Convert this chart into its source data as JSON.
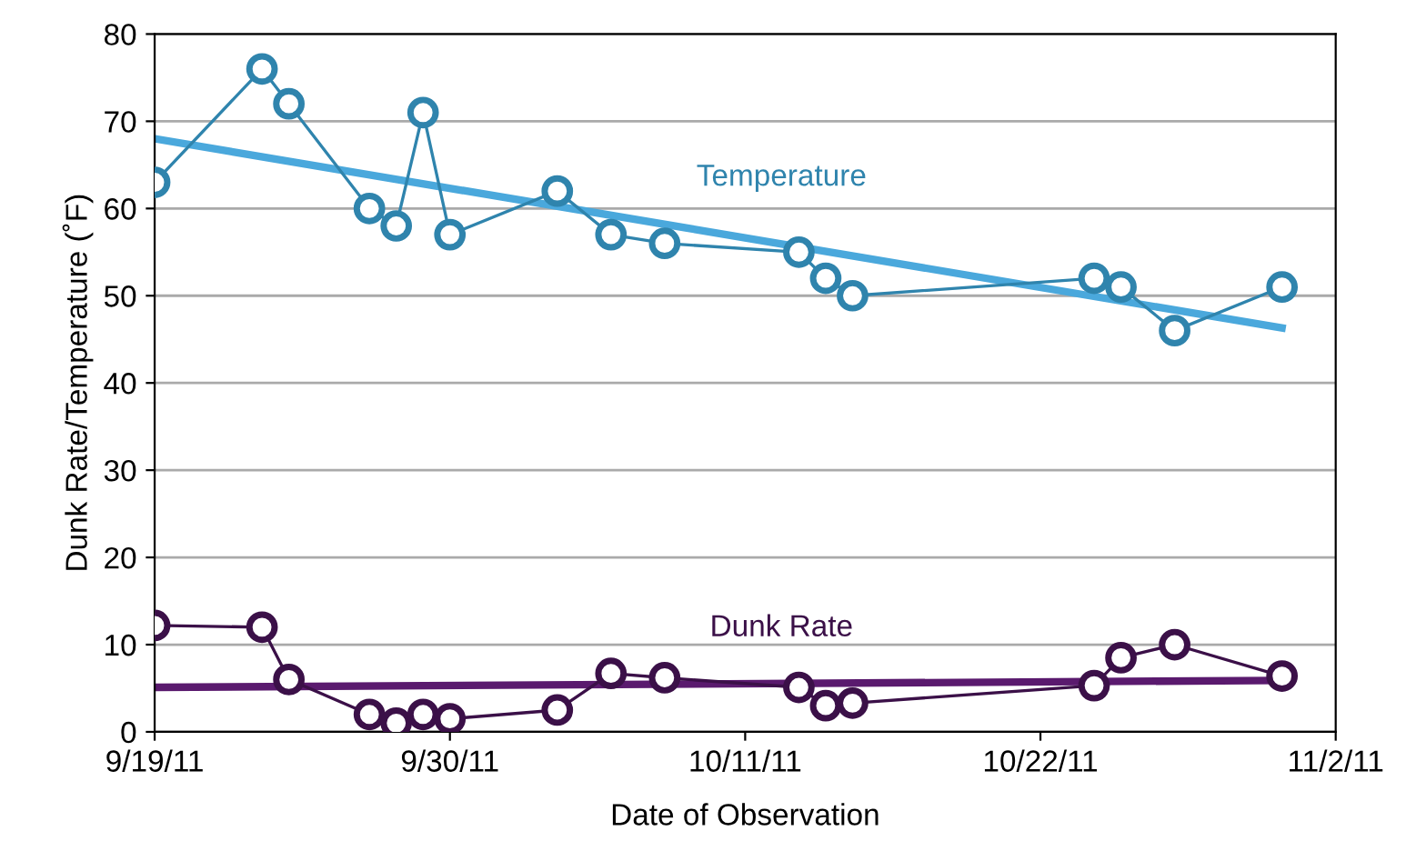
{
  "chart_data": {
    "type": "line",
    "xlabel": "Date of Observation",
    "ylabel": "Dunk Rate/Temperature (˚F)",
    "xlim": [
      "2011-09-19",
      "2011-11-02"
    ],
    "xticks": [
      {
        "value": "2011-09-19",
        "label": "9/19/11"
      },
      {
        "value": "2011-09-30",
        "label": "9/30/11"
      },
      {
        "value": "2011-10-11",
        "label": "10/11/11"
      },
      {
        "value": "2011-10-22",
        "label": "10/22/11"
      },
      {
        "value": "2011-11-02",
        "label": "11/2/11"
      }
    ],
    "ylim": [
      0,
      80
    ],
    "yticks": [
      0,
      10,
      20,
      30,
      40,
      50,
      60,
      70,
      80
    ],
    "grid": "y",
    "marker": "circle",
    "line_style": "solid",
    "series": [
      {
        "name": "Temperature",
        "color": "#2f84ad",
        "x": [
          "2011-09-19",
          "2011-09-23",
          "2011-09-24",
          "2011-09-27",
          "2011-09-28",
          "2011-09-29",
          "2011-09-30",
          "2011-10-04",
          "2011-10-06",
          "2011-10-08",
          "2011-10-13",
          "2011-10-14",
          "2011-10-15",
          "2011-10-24",
          "2011-10-25",
          "2011-10-27",
          "2011-10-31"
        ],
        "values": [
          63,
          76,
          72,
          60,
          58,
          71,
          57,
          62,
          57,
          56,
          55,
          52,
          50,
          52,
          51,
          46,
          51
        ]
      },
      {
        "type": "line",
        "marker": "none",
        "color": "#4aa8dc",
        "x": [
          "2011-09-19",
          "2011-10-31"
        ],
        "values": [
          68,
          46.3
        ]
      },
      {
        "name": "Dunk Rate",
        "color": "#3b1048",
        "x": [
          "2011-09-19",
          "2011-09-23",
          "2011-09-24",
          "2011-09-27",
          "2011-09-28",
          "2011-09-29",
          "2011-09-30",
          "2011-10-04",
          "2011-10-06",
          "2011-10-08",
          "2011-10-13",
          "2011-10-14",
          "2011-10-15",
          "2011-10-24",
          "2011-10-25",
          "2011-10-27",
          "2011-10-31"
        ],
        "values": [
          12.2,
          12,
          6,
          2,
          1,
          2,
          1.5,
          2.5,
          6.7,
          6.2,
          5.1,
          3,
          3.3,
          5.3,
          8.5,
          10,
          6.4
        ]
      },
      {
        "type": "line",
        "marker": "none",
        "color": "#5a1a6e",
        "x": [
          "2011-09-19",
          "2011-10-31"
        ],
        "values": [
          5.1,
          5.9
        ]
      }
    ]
  }
}
